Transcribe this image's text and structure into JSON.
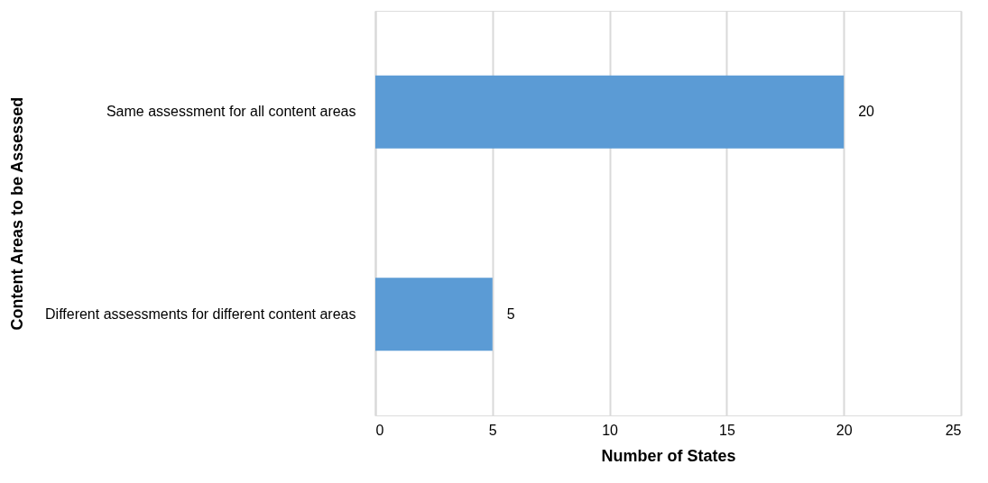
{
  "chart_data": {
    "type": "bar",
    "orientation": "horizontal",
    "xlabel": "Number of States",
    "ylabel": "Content Areas to be Assessed",
    "categories": [
      "Same assessment for all content areas",
      "Different assessments for different content areas"
    ],
    "values": [
      20,
      5
    ],
    "color": "#5b9bd5",
    "xlim": [
      0,
      25
    ],
    "xticks": [
      0,
      5,
      10,
      15,
      20,
      25
    ],
    "grid": "x",
    "data_labels": true
  }
}
